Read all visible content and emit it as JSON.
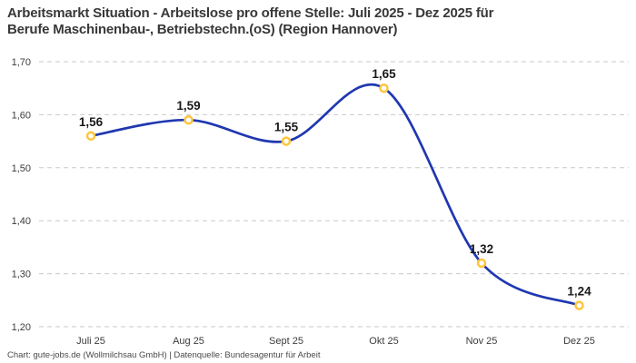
{
  "title": {
    "line1": "Arbeitsmarkt Situation - Arbeitslose pro offene Stelle: Juli 2025 - Dez 2025 für",
    "line2": "Berufe Maschinenbau-, Betriebstechn.(oS) (Region Hannover)"
  },
  "footer": "Chart: gute-jobs.de (Wollmilchsau GmbH) | Datenquelle: Bundesagentur für Arbeit",
  "chart_data": {
    "type": "line",
    "curve": "smooth",
    "categories": [
      "Juli 25",
      "Aug 25",
      "Sept 25",
      "Okt 25",
      "Nov 25",
      "Dez 25"
    ],
    "values": [
      1.56,
      1.59,
      1.55,
      1.65,
      1.32,
      1.24
    ],
    "value_labels": [
      "1,56",
      "1,59",
      "1,55",
      "1,65",
      "1,32",
      "1,24"
    ],
    "y_ticks": [
      "1,70",
      "1,60",
      "1,50",
      "1,40",
      "1,30",
      "1,20"
    ],
    "ylim": [
      1.2,
      1.7
    ],
    "grid": "horizontal-dashed",
    "legend": "none",
    "colors": {
      "line": "#2038B0",
      "marker_stroke": "#FFC53D",
      "marker_fill": "#FFFFFF",
      "grid": "#C9C9C9",
      "data_label": "#191919",
      "tick_label": "#3C3C3C"
    }
  }
}
